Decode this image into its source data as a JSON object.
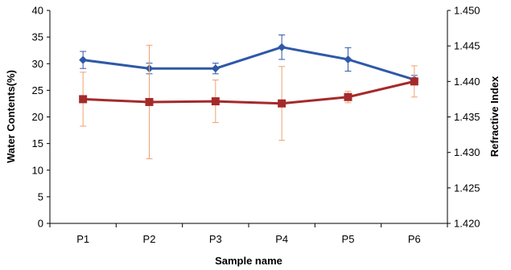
{
  "chart_data": {
    "type": "line",
    "title": "",
    "xlabel": "Sample name",
    "ylabel": "Water Contents(%)",
    "y2label": "Refractive Index",
    "categories": [
      "P1",
      "P2",
      "P3",
      "P4",
      "P5",
      "P6"
    ],
    "ylim": [
      0,
      40
    ],
    "y2lim": [
      1.42,
      1.45
    ],
    "yticks": [
      "0",
      "5",
      "10",
      "15",
      "20",
      "25",
      "30",
      "35",
      "40"
    ],
    "y2ticks": [
      "1.420",
      "1.425",
      "1.430",
      "1.435",
      "1.440",
      "1.445",
      "1.450"
    ],
    "grid": false,
    "legend": "none",
    "series": [
      {
        "axis": "left",
        "color": "#2E59A8",
        "marker": "diamond",
        "values": [
          30.7,
          29.1,
          29.1,
          33.1,
          30.8,
          27.0
        ],
        "error": [
          1.6,
          1.0,
          1.0,
          2.3,
          2.2,
          0.8
        ]
      },
      {
        "axis": "right",
        "color": "#A52A2A",
        "error_color": "#F0A070",
        "marker": "square",
        "values": [
          1.4375,
          1.4371,
          1.4372,
          1.4369,
          1.4378,
          1.44
        ],
        "error": [
          0.0038,
          0.008,
          0.003,
          0.0052,
          0.0008,
          0.0022
        ]
      }
    ]
  }
}
